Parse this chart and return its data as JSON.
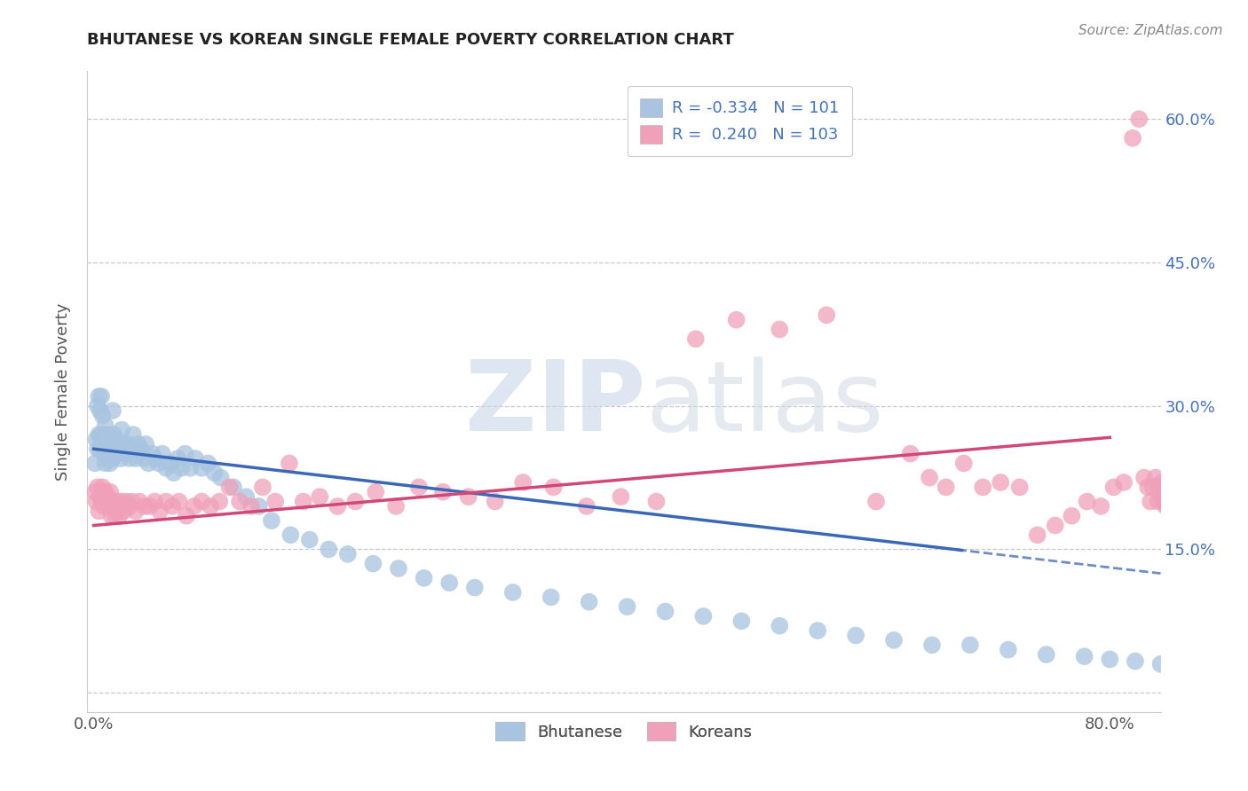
{
  "title": "BHUTANESE VS KOREAN SINGLE FEMALE POVERTY CORRELATION CHART",
  "source": "Source: ZipAtlas.com",
  "ylabel": "Single Female Poverty",
  "xlim": [
    -0.005,
    0.84
  ],
  "ylim": [
    -0.02,
    0.65
  ],
  "bhutanese_color": "#a8c4e0",
  "bhutanese_edge": "#a8c4e0",
  "korean_color": "#f0a0b8",
  "korean_edge": "#f0a0b8",
  "bhutanese_line_color": "#3a68b8",
  "korean_line_color": "#d04878",
  "R_bhutanese": -0.334,
  "N_bhutanese": 101,
  "R_korean": 0.24,
  "N_korean": 103,
  "watermark_zip": "ZIP",
  "watermark_atlas": "atlas",
  "grid_color": "#c8c8c8",
  "y_ticks": [
    0.0,
    0.15,
    0.3,
    0.45,
    0.6
  ],
  "y_tick_labels": [
    "",
    "15.0%",
    "30.0%",
    "45.0%",
    "60.0%"
  ],
  "b_intercept": 0.255,
  "b_slope": -0.155,
  "k_intercept": 0.175,
  "k_slope": 0.115,
  "bhutanese_x": [
    0.001,
    0.002,
    0.003,
    0.003,
    0.004,
    0.004,
    0.005,
    0.005,
    0.006,
    0.006,
    0.007,
    0.007,
    0.008,
    0.008,
    0.009,
    0.009,
    0.01,
    0.01,
    0.011,
    0.011,
    0.012,
    0.012,
    0.013,
    0.013,
    0.014,
    0.015,
    0.015,
    0.016,
    0.016,
    0.017,
    0.018,
    0.019,
    0.02,
    0.021,
    0.022,
    0.023,
    0.024,
    0.025,
    0.026,
    0.027,
    0.028,
    0.03,
    0.031,
    0.033,
    0.035,
    0.037,
    0.039,
    0.041,
    0.043,
    0.046,
    0.048,
    0.051,
    0.054,
    0.057,
    0.06,
    0.063,
    0.066,
    0.069,
    0.072,
    0.076,
    0.08,
    0.085,
    0.09,
    0.095,
    0.1,
    0.11,
    0.12,
    0.13,
    0.14,
    0.155,
    0.17,
    0.185,
    0.2,
    0.22,
    0.24,
    0.26,
    0.28,
    0.3,
    0.33,
    0.36,
    0.39,
    0.42,
    0.45,
    0.48,
    0.51,
    0.54,
    0.57,
    0.6,
    0.63,
    0.66,
    0.69,
    0.72,
    0.75,
    0.78,
    0.8,
    0.82,
    0.84,
    0.85,
    0.855,
    0.858,
    0.86
  ],
  "bhutanese_y": [
    0.24,
    0.265,
    0.3,
    0.255,
    0.31,
    0.27,
    0.295,
    0.255,
    0.27,
    0.31,
    0.265,
    0.29,
    0.25,
    0.27,
    0.24,
    0.28,
    0.25,
    0.265,
    0.255,
    0.27,
    0.245,
    0.26,
    0.255,
    0.24,
    0.26,
    0.295,
    0.245,
    0.27,
    0.25,
    0.255,
    0.265,
    0.25,
    0.26,
    0.245,
    0.275,
    0.255,
    0.26,
    0.255,
    0.25,
    0.26,
    0.245,
    0.255,
    0.27,
    0.245,
    0.26,
    0.255,
    0.245,
    0.26,
    0.24,
    0.25,
    0.245,
    0.24,
    0.25,
    0.235,
    0.24,
    0.23,
    0.245,
    0.235,
    0.25,
    0.235,
    0.245,
    0.235,
    0.24,
    0.23,
    0.225,
    0.215,
    0.205,
    0.195,
    0.18,
    0.165,
    0.16,
    0.15,
    0.145,
    0.135,
    0.13,
    0.12,
    0.115,
    0.11,
    0.105,
    0.1,
    0.095,
    0.09,
    0.085,
    0.08,
    0.075,
    0.07,
    0.065,
    0.06,
    0.055,
    0.05,
    0.05,
    0.045,
    0.04,
    0.038,
    0.035,
    0.033,
    0.03,
    0.028,
    0.025,
    0.022,
    0.02
  ],
  "korean_x": [
    0.001,
    0.002,
    0.003,
    0.004,
    0.005,
    0.006,
    0.007,
    0.008,
    0.009,
    0.01,
    0.011,
    0.012,
    0.013,
    0.014,
    0.015,
    0.016,
    0.017,
    0.018,
    0.019,
    0.02,
    0.022,
    0.024,
    0.026,
    0.028,
    0.03,
    0.033,
    0.036,
    0.04,
    0.044,
    0.048,
    0.052,
    0.057,
    0.062,
    0.067,
    0.073,
    0.079,
    0.085,
    0.092,
    0.099,
    0.107,
    0.115,
    0.124,
    0.133,
    0.143,
    0.154,
    0.165,
    0.178,
    0.192,
    0.206,
    0.222,
    0.238,
    0.256,
    0.275,
    0.295,
    0.316,
    0.338,
    0.362,
    0.388,
    0.415,
    0.443,
    0.474,
    0.506,
    0.54,
    0.577,
    0.616,
    0.643,
    0.658,
    0.671,
    0.685,
    0.7,
    0.714,
    0.729,
    0.743,
    0.757,
    0.77,
    0.782,
    0.793,
    0.803,
    0.811,
    0.818,
    0.823,
    0.827,
    0.83,
    0.832,
    0.834,
    0.836,
    0.838,
    0.839,
    0.84,
    0.841,
    0.842,
    0.843,
    0.844,
    0.845,
    0.846,
    0.847,
    0.848,
    0.849,
    0.85,
    0.851,
    0.852,
    0.853,
    0.854
  ],
  "korean_y": [
    0.21,
    0.2,
    0.215,
    0.19,
    0.205,
    0.2,
    0.215,
    0.195,
    0.21,
    0.2,
    0.205,
    0.195,
    0.21,
    0.185,
    0.2,
    0.195,
    0.185,
    0.2,
    0.195,
    0.185,
    0.2,
    0.19,
    0.2,
    0.195,
    0.2,
    0.19,
    0.2,
    0.195,
    0.195,
    0.2,
    0.19,
    0.2,
    0.195,
    0.2,
    0.185,
    0.195,
    0.2,
    0.195,
    0.2,
    0.215,
    0.2,
    0.195,
    0.215,
    0.2,
    0.24,
    0.2,
    0.205,
    0.195,
    0.2,
    0.21,
    0.195,
    0.215,
    0.21,
    0.205,
    0.2,
    0.22,
    0.215,
    0.195,
    0.205,
    0.2,
    0.37,
    0.39,
    0.38,
    0.395,
    0.2,
    0.25,
    0.225,
    0.215,
    0.24,
    0.215,
    0.22,
    0.215,
    0.165,
    0.175,
    0.185,
    0.2,
    0.195,
    0.215,
    0.22,
    0.58,
    0.6,
    0.225,
    0.215,
    0.2,
    0.215,
    0.225,
    0.2,
    0.215,
    0.205,
    0.22,
    0.2,
    0.215,
    0.195,
    0.21,
    0.215,
    0.2,
    0.215,
    0.2,
    0.195,
    0.21,
    0.2,
    0.215,
    0.205
  ]
}
